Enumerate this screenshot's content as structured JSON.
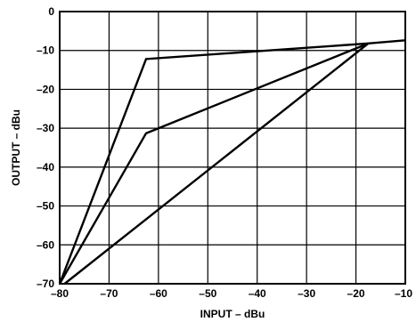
{
  "chart_data": {
    "type": "line",
    "title": "",
    "xlabel": "INPUT – dBu",
    "ylabel": "OUTPUT – dBu",
    "xlim": [
      -80,
      -10
    ],
    "ylim": [
      -70,
      0
    ],
    "x_ticks": [
      -80,
      -70,
      -60,
      -50,
      -40,
      -30,
      -20,
      -10
    ],
    "y_ticks": [
      0,
      -10,
      -20,
      -30,
      -40,
      -50,
      -60,
      -70
    ],
    "x_tick_labels": [
      "–80",
      "–70",
      "–60",
      "–50",
      "–40",
      "–30",
      "–20",
      "–10"
    ],
    "y_tick_labels": [
      "0",
      "–10",
      "–20",
      "–30",
      "–40",
      "–50",
      "–60",
      "–70"
    ],
    "grid": true,
    "legend": "none",
    "series": [
      {
        "x": [
          -80,
          -62.5,
          -17.5,
          -10
        ],
        "y": [
          -70,
          -12.2,
          -8.2,
          -7.4
        ]
      },
      {
        "x": [
          -80,
          -62.5,
          -17.5
        ],
        "y": [
          -70,
          -31.3,
          -8.2
        ]
      },
      {
        "x": [
          -79,
          -17.5
        ],
        "y": [
          -70,
          -8.2
        ]
      }
    ]
  }
}
